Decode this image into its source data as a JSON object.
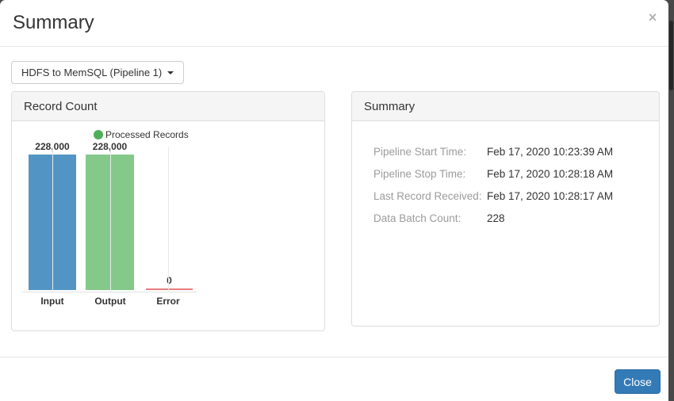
{
  "modal": {
    "title": "Summary",
    "close_icon_glyph": "×"
  },
  "pipeline_selector": {
    "selected": "HDFS to MemSQL (Pipeline 1)"
  },
  "record_count_panel": {
    "title": "Record Count"
  },
  "summary_panel": {
    "title": "Summary",
    "rows": [
      {
        "label": "Pipeline Start Time:",
        "value": "Feb 17, 2020 10:23:39 AM"
      },
      {
        "label": "Pipeline Stop Time:",
        "value": "Feb 17, 2020 10:28:18 AM"
      },
      {
        "label": "Last Record Received:",
        "value": "Feb 17, 2020 10:28:17 AM"
      },
      {
        "label": "Data Batch Count:",
        "value": "228"
      }
    ]
  },
  "footer": {
    "close_label": "Close"
  },
  "chart_data": {
    "type": "bar",
    "title": "Record Count",
    "categories": [
      "Input",
      "Output",
      "Error"
    ],
    "values": [
      228000,
      228000,
      0
    ],
    "value_labels": [
      "228,000",
      "228,000",
      "0"
    ],
    "bar_colors": [
      "#5295c5",
      "#84c98a",
      "#e87c7c"
    ],
    "legend": [
      {
        "label": "Processed Records",
        "color": "#4fae58"
      }
    ],
    "legend_position": "top",
    "xlabel": "",
    "ylabel": "",
    "ylim": [
      0,
      228000
    ],
    "grid": "vertical-category-lines"
  },
  "colors": {
    "primary_button": "#337ab7",
    "panel_heading_bg": "#f5f5f5",
    "panel_border": "#dddddd",
    "error_line": "#e87c7c"
  }
}
